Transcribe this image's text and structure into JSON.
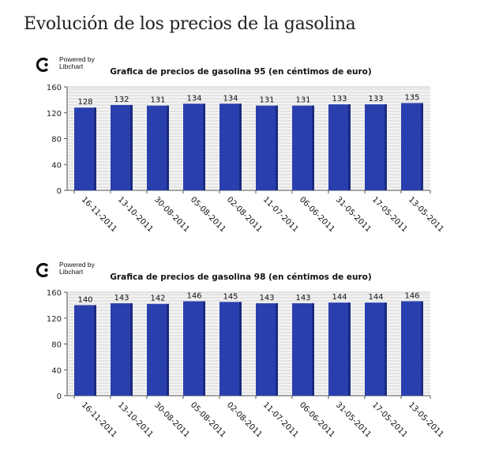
{
  "page": {
    "title": "Evolución de los precios de la gasolina"
  },
  "logo": {
    "line1": "Powered by",
    "line2": "Libchart"
  },
  "colors": {
    "bar": "#2a3fae",
    "bar_dark": "#1a2a80",
    "grid": "#d4d4d4",
    "plot_bg": "#f3f3f3",
    "axis": "#555555"
  },
  "chart_data": [
    {
      "type": "bar",
      "title": "Grafica de precios de gasolina 95 (en céntimos de euro)",
      "categories": [
        "16-11-2011",
        "13-10-2011",
        "30-08-2011",
        "05-08-2011",
        "02-08-2011",
        "11-07-2011",
        "06-06-2011",
        "31-05-2011",
        "17-05-2011",
        "13-05-2011"
      ],
      "values": [
        128,
        132,
        131,
        134,
        134,
        131,
        131,
        133,
        133,
        135
      ],
      "ylim": [
        0,
        160
      ],
      "yticks": [
        0,
        40,
        80,
        120,
        160
      ],
      "grid": true
    },
    {
      "type": "bar",
      "title": "Grafica de precios de gasolina 98 (en céntimos de euro)",
      "categories": [
        "16-11-2011",
        "13-10-2011",
        "30-08-2011",
        "05-08-2011",
        "02-08-2011",
        "11-07-2011",
        "06-06-2011",
        "31-05-2011",
        "17-05-2011",
        "13-05-2011"
      ],
      "values": [
        140,
        143,
        142,
        146,
        145,
        143,
        143,
        144,
        144,
        146
      ],
      "ylim": [
        0,
        160
      ],
      "yticks": [
        0,
        40,
        80,
        120,
        160
      ],
      "grid": true
    }
  ]
}
